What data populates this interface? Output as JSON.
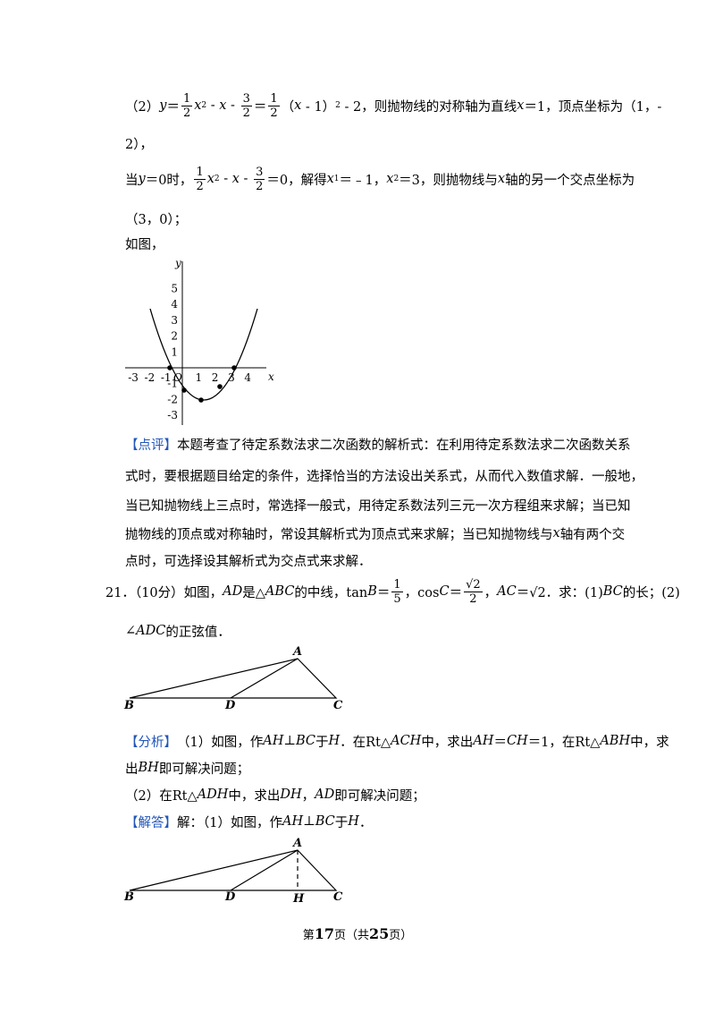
{
  "body": [
    [
      "（2）",
      {
        "i": "y"
      },
      "＝",
      {
        "num": "1",
        "den": "2"
      },
      {
        "i": "x"
      },
      {
        "sup": "2"
      },
      " - ",
      {
        "i": "x"
      },
      " - ",
      {
        "num": "3",
        "den": "2"
      },
      "＝",
      {
        "num": "1",
        "den": "2"
      },
      "（",
      {
        "i": "x"
      },
      " - 1）",
      {
        "sup": "2"
      },
      " - 2，则抛物线的对称轴为直线",
      {
        "i": "x"
      },
      "＝1，顶点坐标为（1，-"
    ],
    [
      "2），"
    ],
    [
      "当",
      {
        "i": "y"
      },
      "＝0时，",
      {
        "num": "1",
        "den": "2"
      },
      {
        "i": "x"
      },
      {
        "sup": "2"
      },
      " - ",
      {
        "i": "x"
      },
      " - ",
      {
        "num": "3",
        "den": "2"
      },
      "＝0，解得",
      {
        "i": "x"
      },
      {
        "sub": "1"
      },
      "＝﹣1，",
      {
        "i": "x"
      },
      {
        "sub": "2"
      },
      "＝3，则抛物线与",
      {
        "i": "x"
      },
      "轴的另一个交点坐标为"
    ],
    [
      "（3，0）；"
    ],
    [
      "如图，"
    ],
    [
      {
        "tag": "【点评】"
      },
      "本题考查了待定系数法求二次函数的解析式：在利用待定系数法求二次函数关系"
    ],
    [
      "式时，要根据题目给定的条件，选择恰当的方法设出关系式，从而代入数值求解．一般地，"
    ],
    [
      "当已知抛物线上三点时，常选择一般式，用待定系数法列三元一次方程组来求解；当已知"
    ],
    [
      "抛物线的顶点或对称轴时，常设其解析式为顶点式来求解；当已知抛物线与",
      {
        "i": "x"
      },
      "轴有两个交"
    ],
    [
      "点时，可选择设其解析式为交点式来求解．"
    ],
    [
      "21．（10分）如图，",
      {
        "i": "AD"
      },
      "是△",
      {
        "i": "ABC"
      },
      "的中线，tan",
      {
        "i": "B"
      },
      "＝",
      {
        "num": "1",
        "den": "5"
      },
      "，cos",
      {
        "i": "C"
      },
      "＝",
      {
        "num": "√2",
        "den": "2"
      },
      "，",
      {
        "i": "AC"
      },
      "＝√2．求：(1)",
      {
        "i": "BC"
      },
      "的长；(2)"
    ],
    [
      "∠",
      {
        "i": "ADC"
      },
      "的正弦值．"
    ],
    [
      {
        "tag": "【分析】"
      },
      "（1）如图，作",
      {
        "i": "AH"
      },
      "⊥",
      {
        "i": "BC"
      },
      "于",
      {
        "i": "H"
      },
      "．在Rt△",
      {
        "i": "ACH"
      },
      "中，求出",
      {
        "i": "AH"
      },
      "＝",
      {
        "i": "CH"
      },
      "＝1，在Rt△",
      {
        "i": "ABH"
      },
      "中，求"
    ],
    [
      "出",
      {
        "i": "BH"
      },
      "即可解决问题；"
    ],
    [
      "（2）在Rt△",
      {
        "i": "ADH"
      },
      "中，求出",
      {
        "i": "DH"
      },
      "，",
      {
        "i": "AD"
      },
      "即可解决问题；"
    ],
    [
      {
        "tag": "【解答】"
      },
      "解：（1）如图，作",
      {
        "i": "AH"
      },
      "⊥",
      {
        "i": "BC"
      },
      "于",
      {
        "i": "H"
      },
      "．"
    ]
  ],
  "graph": {
    "x_label": "x",
    "y_label": "y",
    "origin": "O",
    "x_ticks": [
      -3,
      -2,
      -1,
      1,
      2,
      3,
      4
    ],
    "y_ticks": [
      5,
      4,
      3,
      2,
      1,
      -1,
      -2,
      -3
    ]
  },
  "figure1": {
    "A": "A",
    "B": "B",
    "C": "C",
    "D": "D"
  },
  "figure2": {
    "A": "A",
    "B": "B",
    "C": "C",
    "D": "D",
    "H": "H"
  },
  "footer": [
    "第",
    {
      "b": "17"
    },
    "页（共",
    {
      "b": "25"
    },
    "页）"
  ]
}
